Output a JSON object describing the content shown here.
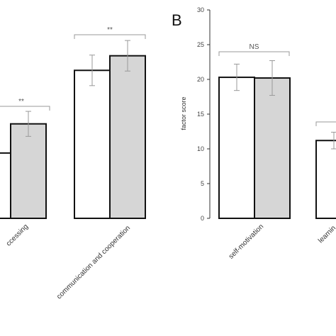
{
  "chart_data": [
    {
      "type": "bar",
      "panel": "",
      "categories": [
        "information processing",
        "communication and cooperation"
      ],
      "category_labels_visible": [
        "ccessing",
        "communication and cooperation"
      ],
      "series": [
        {
          "fill": "#ffffff",
          "values": [
            9.4,
            21.3
          ],
          "errors": [
            1.5,
            2.2
          ]
        },
        {
          "fill": "#d6d6d6",
          "values": [
            13.6,
            23.4
          ],
          "errors": [
            1.8,
            2.2
          ]
        }
      ],
      "ylim": [
        0,
        30
      ],
      "significance": [
        "**",
        "**"
      ]
    },
    {
      "type": "bar",
      "panel": "B",
      "categories": [
        "self-motivation",
        "learning"
      ],
      "category_labels_visible": [
        "self-motivation",
        "learnin"
      ],
      "series": [
        {
          "fill": "#ffffff",
          "values": [
            20.3,
            11.2
          ],
          "errors": [
            1.9,
            1.2
          ]
        },
        {
          "fill": "#d6d6d6",
          "values": [
            20.2,
            0
          ],
          "errors": [
            2.5,
            0
          ]
        }
      ],
      "ylabel": "factor score",
      "ylim": [
        0,
        30
      ],
      "yticks": [
        "0",
        "5",
        "10",
        "15",
        "20",
        "25",
        "30"
      ],
      "significance": [
        "NS",
        ""
      ]
    }
  ]
}
